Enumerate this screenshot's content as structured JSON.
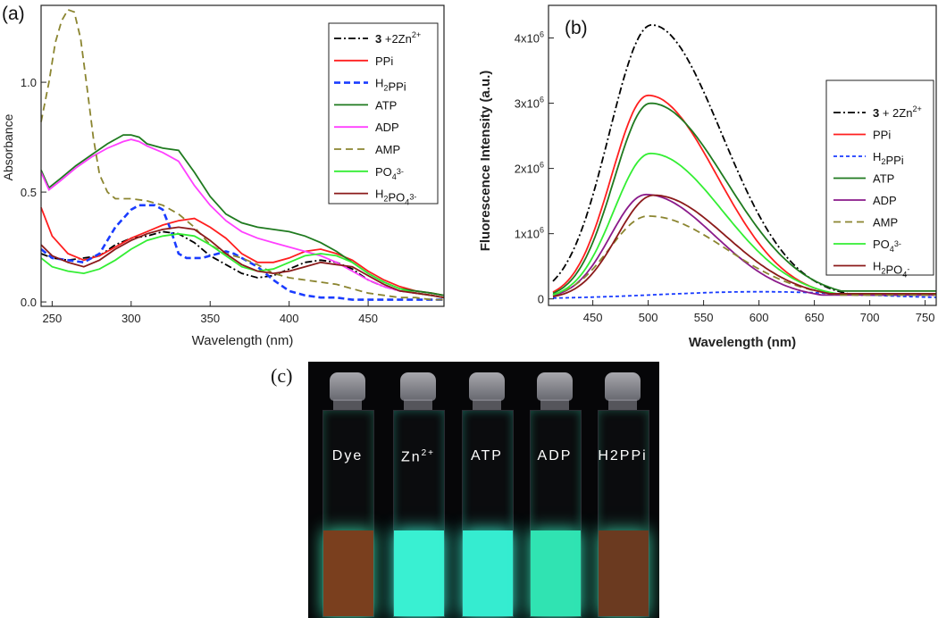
{
  "panels": {
    "a": "(a)",
    "b": "(b)",
    "c": "(c)"
  },
  "chart_data": [
    {
      "id": "a",
      "type": "line",
      "xlabel": "Wavelength (nm)",
      "ylabel": "Absorbance",
      "xlim": [
        243,
        498
      ],
      "ylim": [
        -0.02,
        1.35
      ],
      "xticks": [
        250,
        300,
        350,
        400,
        450
      ],
      "yticks": [
        0.0,
        0.5,
        1.0
      ],
      "ytick_labels": [
        "0.0",
        "0.5",
        "1.0"
      ],
      "legend": "top-right",
      "series": [
        {
          "name": "3 +2Zn2+",
          "color": "#000000",
          "dash": "8,3,2,3",
          "x": [
            243,
            250,
            260,
            270,
            280,
            290,
            300,
            310,
            320,
            330,
            340,
            350,
            360,
            370,
            380,
            390,
            400,
            410,
            420,
            430,
            440,
            450,
            460,
            470,
            480,
            490,
            498
          ],
          "y": [
            0.22,
            0.2,
            0.19,
            0.2,
            0.21,
            0.26,
            0.29,
            0.3,
            0.32,
            0.31,
            0.27,
            0.21,
            0.17,
            0.13,
            0.11,
            0.12,
            0.15,
            0.18,
            0.19,
            0.18,
            0.15,
            0.1,
            0.07,
            0.05,
            0.04,
            0.03,
            0.02
          ]
        },
        {
          "name": "PPi",
          "color": "#ff1f1f",
          "dash": "",
          "x": [
            243,
            250,
            260,
            270,
            280,
            290,
            300,
            310,
            320,
            330,
            340,
            350,
            360,
            370,
            380,
            390,
            400,
            410,
            420,
            430,
            440,
            450,
            460,
            470,
            480,
            490,
            498
          ],
          "y": [
            0.43,
            0.3,
            0.22,
            0.19,
            0.21,
            0.25,
            0.29,
            0.32,
            0.35,
            0.37,
            0.38,
            0.34,
            0.29,
            0.22,
            0.18,
            0.18,
            0.2,
            0.23,
            0.24,
            0.22,
            0.19,
            0.14,
            0.1,
            0.07,
            0.05,
            0.04,
            0.03
          ]
        },
        {
          "name": "H2PPi",
          "color": "#1a3cff",
          "dash": "7,4",
          "x": [
            243,
            250,
            260,
            270,
            280,
            290,
            300,
            305,
            310,
            315,
            320,
            325,
            330,
            335,
            340,
            345,
            350,
            355,
            360,
            365,
            370,
            380,
            390,
            400,
            410,
            420,
            430,
            440,
            450,
            460,
            470,
            480,
            490,
            498
          ],
          "y": [
            0.24,
            0.2,
            0.19,
            0.18,
            0.22,
            0.34,
            0.42,
            0.44,
            0.44,
            0.44,
            0.42,
            0.33,
            0.22,
            0.2,
            0.2,
            0.2,
            0.21,
            0.22,
            0.23,
            0.22,
            0.2,
            0.16,
            0.1,
            0.05,
            0.03,
            0.02,
            0.02,
            0.01,
            0.01,
            0.01,
            0.01,
            0.01,
            0.01,
            0.01
          ]
        },
        {
          "name": "ATP",
          "color": "#1f7a1f",
          "dash": "",
          "x": [
            243,
            248,
            255,
            265,
            275,
            285,
            295,
            300,
            305,
            310,
            320,
            330,
            340,
            350,
            360,
            370,
            380,
            390,
            400,
            410,
            420,
            430,
            440,
            450,
            460,
            470,
            480,
            490,
            498
          ],
          "y": [
            0.6,
            0.52,
            0.56,
            0.62,
            0.67,
            0.72,
            0.76,
            0.76,
            0.75,
            0.72,
            0.7,
            0.69,
            0.59,
            0.48,
            0.4,
            0.36,
            0.34,
            0.33,
            0.32,
            0.3,
            0.27,
            0.23,
            0.18,
            0.13,
            0.09,
            0.06,
            0.05,
            0.04,
            0.03
          ]
        },
        {
          "name": "ADP",
          "color": "#ff40ff",
          "dash": "",
          "x": [
            243,
            248,
            255,
            265,
            275,
            285,
            295,
            300,
            305,
            310,
            320,
            330,
            340,
            350,
            360,
            370,
            380,
            390,
            400,
            410,
            420,
            430,
            440,
            450,
            460,
            470,
            480,
            490,
            498
          ],
          "y": [
            0.59,
            0.51,
            0.55,
            0.61,
            0.66,
            0.7,
            0.73,
            0.74,
            0.73,
            0.71,
            0.68,
            0.64,
            0.53,
            0.44,
            0.37,
            0.32,
            0.29,
            0.27,
            0.25,
            0.23,
            0.21,
            0.18,
            0.14,
            0.1,
            0.07,
            0.05,
            0.04,
            0.03,
            0.02
          ]
        },
        {
          "name": "AMP",
          "color": "#8b8530",
          "dash": "8,5",
          "x": [
            243,
            248,
            252,
            256,
            260,
            264,
            268,
            272,
            276,
            280,
            285,
            290,
            295,
            300,
            310,
            320,
            330,
            340,
            350,
            360,
            370,
            380,
            390,
            400,
            410,
            420,
            430,
            440,
            450,
            460,
            470,
            480,
            490,
            498
          ],
          "y": [
            0.82,
            1.0,
            1.18,
            1.28,
            1.33,
            1.32,
            1.2,
            0.98,
            0.75,
            0.58,
            0.5,
            0.47,
            0.47,
            0.47,
            0.46,
            0.44,
            0.4,
            0.34,
            0.26,
            0.22,
            0.2,
            0.17,
            0.13,
            0.11,
            0.1,
            0.09,
            0.08,
            0.06,
            0.04,
            0.03,
            0.02,
            0.02,
            0.01,
            0.01
          ]
        },
        {
          "name": "PO43-",
          "color": "#33ee33",
          "dash": "",
          "x": [
            243,
            250,
            260,
            270,
            280,
            290,
            300,
            310,
            320,
            330,
            340,
            350,
            360,
            370,
            380,
            390,
            400,
            410,
            420,
            430,
            440,
            450,
            460,
            470,
            480,
            490,
            498
          ],
          "y": [
            0.2,
            0.16,
            0.14,
            0.13,
            0.15,
            0.19,
            0.24,
            0.28,
            0.3,
            0.31,
            0.3,
            0.26,
            0.21,
            0.16,
            0.14,
            0.15,
            0.18,
            0.21,
            0.22,
            0.21,
            0.18,
            0.13,
            0.09,
            0.06,
            0.04,
            0.03,
            0.02
          ]
        },
        {
          "name": "H2PO43-",
          "color": "#8b1a1a",
          "dash": "",
          "x": [
            243,
            250,
            260,
            270,
            280,
            290,
            300,
            310,
            320,
            330,
            340,
            350,
            360,
            370,
            380,
            390,
            400,
            410,
            420,
            430,
            440,
            450,
            460,
            470,
            480,
            490,
            498
          ],
          "y": [
            0.26,
            0.21,
            0.18,
            0.16,
            0.19,
            0.24,
            0.28,
            0.31,
            0.33,
            0.34,
            0.33,
            0.28,
            0.22,
            0.17,
            0.14,
            0.13,
            0.14,
            0.16,
            0.18,
            0.17,
            0.16,
            0.12,
            0.08,
            0.05,
            0.04,
            0.03,
            0.02
          ]
        }
      ],
      "legend_entries": [
        {
          "parts": [
            [
              "b",
              "3"
            ],
            [
              "n",
              " +2Zn"
            ],
            [
              "sup",
              "2+"
            ]
          ]
        },
        {
          "parts": [
            [
              "n",
              "PPi"
            ]
          ]
        },
        {
          "parts": [
            [
              "n",
              "H"
            ],
            [
              "sub",
              "2"
            ],
            [
              "n",
              "PPi"
            ]
          ]
        },
        {
          "parts": [
            [
              "n",
              "ATP"
            ]
          ]
        },
        {
          "parts": [
            [
              "n",
              "ADP"
            ]
          ]
        },
        {
          "parts": [
            [
              "n",
              "AMP"
            ]
          ]
        },
        {
          "parts": [
            [
              "n",
              "PO"
            ],
            [
              "sub",
              "4"
            ],
            [
              "sup",
              "3-"
            ]
          ]
        },
        {
          "parts": [
            [
              "n",
              "H"
            ],
            [
              "sub",
              "2"
            ],
            [
              "n",
              "PO"
            ],
            [
              "sub",
              "4"
            ],
            [
              "sup",
              "3-"
            ]
          ]
        }
      ]
    },
    {
      "id": "b",
      "type": "line",
      "xlabel": "Wavelength (nm)",
      "ylabel": "Fluorescence Intensity (a.u.)",
      "xlim": [
        410,
        760
      ],
      "ylim": [
        -100000,
        4500000
      ],
      "xticks": [
        450,
        500,
        550,
        600,
        650,
        700,
        750
      ],
      "yticks": [
        0,
        1000000,
        2000000,
        3000000,
        4000000
      ],
      "ytick_labels": [
        [
          "0",
          ""
        ],
        [
          "1x10",
          "6"
        ],
        [
          "2x10",
          "6"
        ],
        [
          "3x10",
          "6"
        ],
        [
          "4x10",
          "6"
        ]
      ],
      "legend": "right",
      "series": [
        {
          "name": "3 + 2Zn2+",
          "color": "#000000",
          "dash": "8,3,2,3",
          "amp": 4200000,
          "center": 503,
          "wl": 38,
          "wr": 63,
          "base": 60000
        },
        {
          "name": "PPi",
          "color": "#ff1f1f",
          "dash": "",
          "amp": 3120000,
          "center": 500,
          "wl": 33,
          "wr": 62,
          "base": 80000
        },
        {
          "name": "H2PPi",
          "color": "#1a3cff",
          "dash": "4,3",
          "amp": 110000,
          "center": 600,
          "wl": 90,
          "wr": 90,
          "base": 20000
        },
        {
          "name": "ATP",
          "color": "#1f7a1f",
          "dash": "",
          "amp": 3000000,
          "center": 502,
          "wl": 33,
          "wr": 68,
          "base": 120000
        },
        {
          "name": "ADP",
          "color": "#8a1a8a",
          "dash": "",
          "amp": 1600000,
          "center": 498,
          "wl": 32,
          "wr": 62,
          "base": 60000
        },
        {
          "name": "AMP",
          "color": "#8b8530",
          "dash": "8,5",
          "amp": 1270000,
          "center": 500,
          "wl": 35,
          "wr": 70,
          "base": 60000
        },
        {
          "name": "PO43-",
          "color": "#33ee33",
          "dash": "",
          "amp": 2230000,
          "center": 502,
          "wl": 33,
          "wr": 65,
          "base": 80000
        },
        {
          "name": "H2PO4-",
          "color": "#8b1a1a",
          "dash": "",
          "amp": 1590000,
          "center": 505,
          "wl": 33,
          "wr": 65,
          "base": 80000
        }
      ],
      "legend_entries": [
        {
          "parts": [
            [
              "b",
              "3"
            ],
            [
              "n",
              " + 2Zn"
            ],
            [
              "sup",
              "2+"
            ]
          ]
        },
        {
          "parts": [
            [
              "n",
              "PPi"
            ]
          ]
        },
        {
          "parts": [
            [
              "n",
              "H"
            ],
            [
              "sub",
              "2"
            ],
            [
              "n",
              "PPi"
            ]
          ]
        },
        {
          "parts": [
            [
              "n",
              "ATP"
            ]
          ]
        },
        {
          "parts": [
            [
              "n",
              "ADP"
            ]
          ]
        },
        {
          "parts": [
            [
              "n",
              "AMP"
            ]
          ]
        },
        {
          "parts": [
            [
              "n",
              "PO"
            ],
            [
              "sub",
              "4"
            ],
            [
              "sup",
              "3-"
            ]
          ]
        },
        {
          "parts": [
            [
              "n",
              "H"
            ],
            [
              "sub",
              "2"
            ],
            [
              "n",
              "PO"
            ],
            [
              "sub",
              "4"
            ],
            [
              "sup",
              "-"
            ]
          ]
        }
      ]
    }
  ],
  "photo": {
    "vials": [
      {
        "label": "Dye",
        "label_sup": "",
        "fill_color": "#7a3f1e",
        "glow": "#39d9a8"
      },
      {
        "label": "Zn",
        "label_sup": "2+",
        "fill_color": "#39f0d2",
        "glow": "#3af7d6"
      },
      {
        "label": "ATP",
        "label_sup": "",
        "fill_color": "#35ecd0",
        "glow": "#3af7d6"
      },
      {
        "label": "ADP",
        "label_sup": "",
        "fill_color": "#30e3b2",
        "glow": "#35e7bb"
      },
      {
        "label": "H2PPi",
        "label_sup": "",
        "fill_color": "#6b3a20",
        "glow": "#39c9a0"
      }
    ]
  }
}
